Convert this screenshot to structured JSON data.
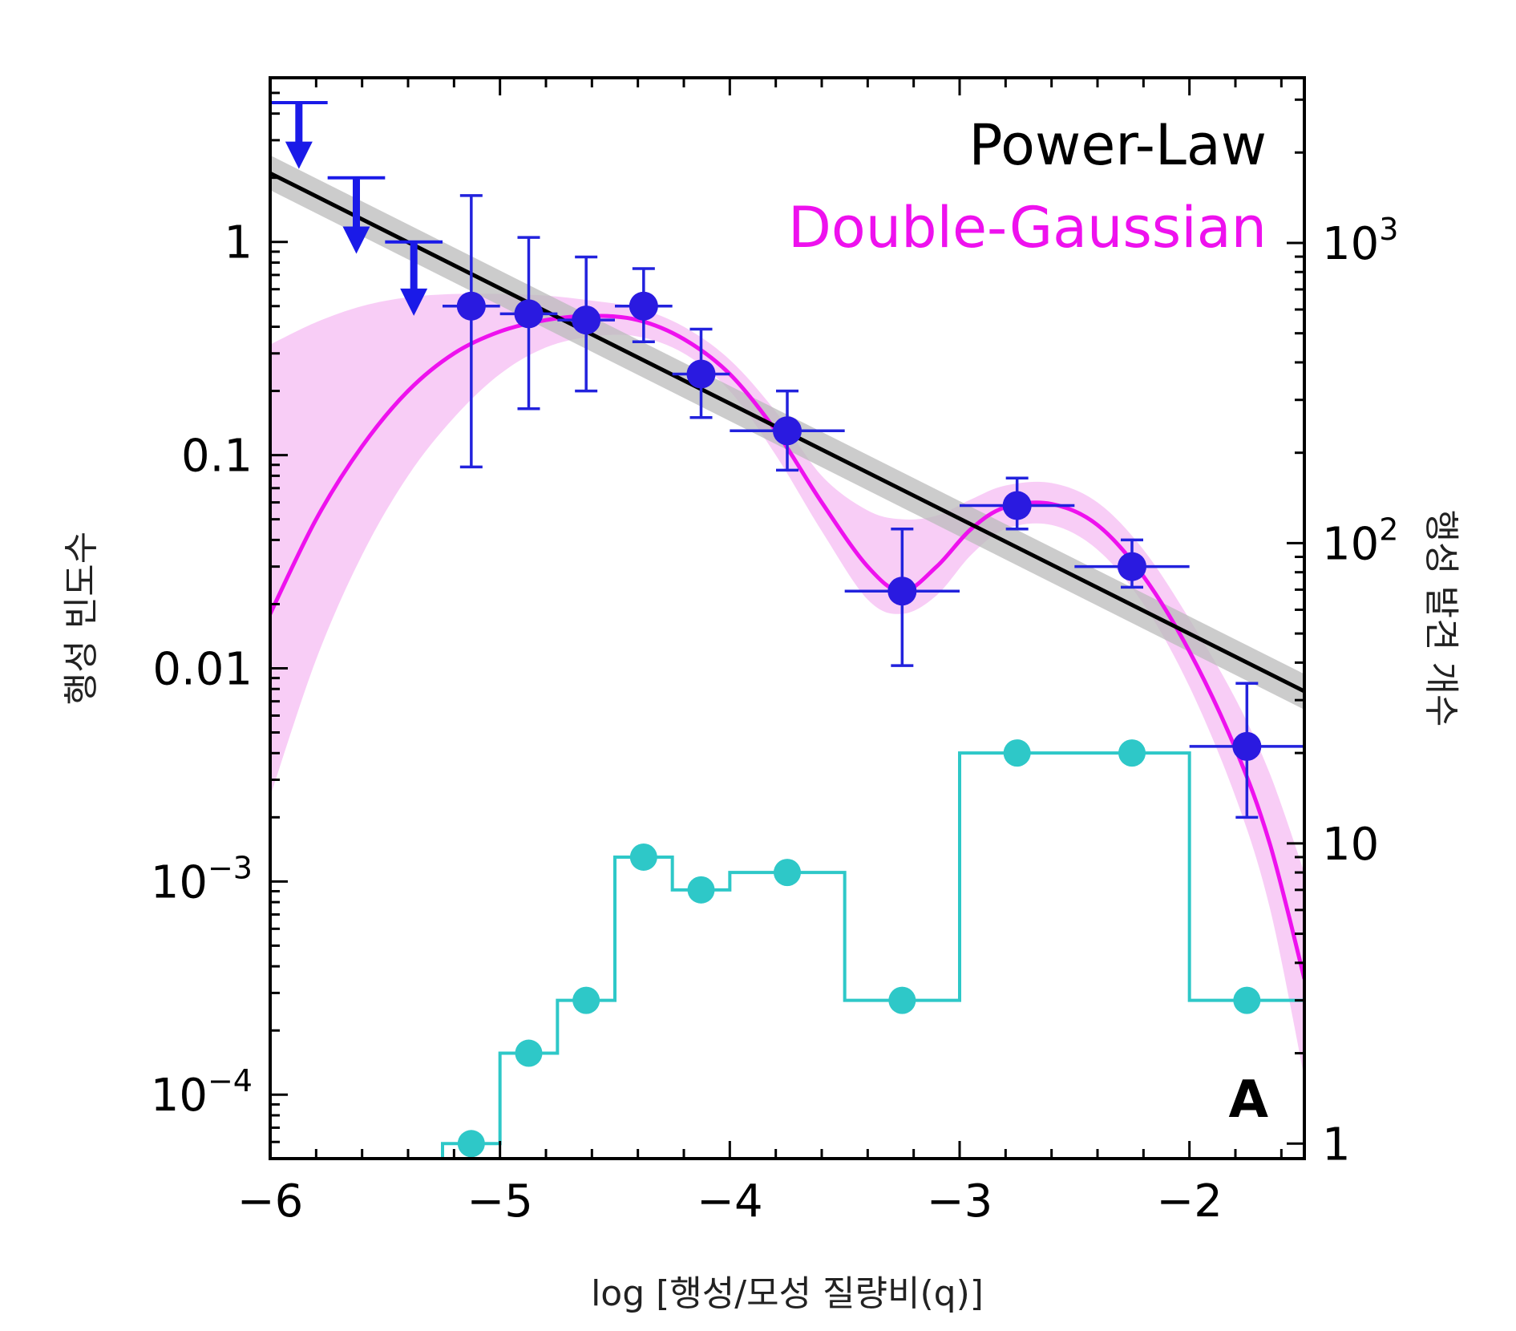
{
  "chart_data": {
    "type": "scatter",
    "title": "",
    "panel_label": "A",
    "xlabel": "log [행성/모성  질량비(q)]",
    "ylabel_left": "행성 빈도수",
    "ylabel_right": "행성 발견 개수",
    "xlim": [
      -6,
      -1.5
    ],
    "ylim_left_log10": [
      -4.3,
      0.77
    ],
    "ylim_right_log10": [
      -0.05,
      3.55
    ],
    "x_ticks": [
      {
        "value": -6,
        "label": "−6"
      },
      {
        "value": -5,
        "label": "−5"
      },
      {
        "value": -4,
        "label": "−4"
      },
      {
        "value": -3,
        "label": "−3"
      },
      {
        "value": -2,
        "label": "−2"
      }
    ],
    "y_ticks_left": [
      {
        "value": 1,
        "label": "1"
      },
      {
        "value": 0.1,
        "label": "0.1"
      },
      {
        "value": 0.01,
        "label": "0.01"
      },
      {
        "value": 0.001,
        "label": "10",
        "exp": "−3"
      },
      {
        "value": 0.0001,
        "label": "10",
        "exp": "−4"
      }
    ],
    "y_ticks_right": [
      {
        "value": 1000,
        "label": "10",
        "exp": "3"
      },
      {
        "value": 100,
        "label": "10",
        "exp": "2"
      },
      {
        "value": 10,
        "label": "10"
      },
      {
        "value": 1,
        "label": "1"
      }
    ],
    "legend": [
      {
        "label": "Power-Law",
        "color": "#000000"
      },
      {
        "label": "Double-Gaussian",
        "color": "#ee11ee"
      }
    ],
    "series": [
      {
        "name": "Power-Law",
        "type": "line",
        "color": "#000000",
        "band_color": "#bbbbbb",
        "points": [
          {
            "x": -6,
            "y": 2.1
          },
          {
            "x": -1.5,
            "y": 0.0078
          }
        ],
        "band_upper": [
          {
            "x": -6,
            "y": 2.55
          },
          {
            "x": -1.5,
            "y": 0.0094
          }
        ],
        "band_lower": [
          {
            "x": -6,
            "y": 1.75
          },
          {
            "x": -1.5,
            "y": 0.0064
          }
        ]
      },
      {
        "name": "Double-Gaussian",
        "type": "line",
        "color": "#ee11ee",
        "band_color": "#f7c4f4",
        "points": [
          {
            "x": -6.0,
            "y": 0.018
          },
          {
            "x": -5.8,
            "y": 0.05
          },
          {
            "x": -5.6,
            "y": 0.11
          },
          {
            "x": -5.4,
            "y": 0.2
          },
          {
            "x": -5.2,
            "y": 0.3
          },
          {
            "x": -5.0,
            "y": 0.38
          },
          {
            "x": -4.8,
            "y": 0.43
          },
          {
            "x": -4.6,
            "y": 0.45
          },
          {
            "x": -4.4,
            "y": 0.43
          },
          {
            "x": -4.2,
            "y": 0.35
          },
          {
            "x": -4.0,
            "y": 0.24
          },
          {
            "x": -3.8,
            "y": 0.13
          },
          {
            "x": -3.6,
            "y": 0.06
          },
          {
            "x": -3.4,
            "y": 0.03
          },
          {
            "x": -3.25,
            "y": 0.023
          },
          {
            "x": -3.1,
            "y": 0.03
          },
          {
            "x": -2.95,
            "y": 0.045
          },
          {
            "x": -2.8,
            "y": 0.057
          },
          {
            "x": -2.6,
            "y": 0.059
          },
          {
            "x": -2.4,
            "y": 0.047
          },
          {
            "x": -2.2,
            "y": 0.027
          },
          {
            "x": -2.0,
            "y": 0.012
          },
          {
            "x": -1.8,
            "y": 0.0042
          },
          {
            "x": -1.65,
            "y": 0.0015
          },
          {
            "x": -1.5,
            "y": 0.00035
          }
        ],
        "band_upper": [
          {
            "x": -6.0,
            "y": 0.33
          },
          {
            "x": -5.8,
            "y": 0.42
          },
          {
            "x": -5.6,
            "y": 0.5
          },
          {
            "x": -5.4,
            "y": 0.55
          },
          {
            "x": -5.2,
            "y": 0.57
          },
          {
            "x": -5.0,
            "y": 0.57
          },
          {
            "x": -4.8,
            "y": 0.56
          },
          {
            "x": -4.6,
            "y": 0.53
          },
          {
            "x": -4.4,
            "y": 0.49
          },
          {
            "x": -4.2,
            "y": 0.4
          },
          {
            "x": -4.0,
            "y": 0.28
          },
          {
            "x": -3.8,
            "y": 0.16
          },
          {
            "x": -3.6,
            "y": 0.08
          },
          {
            "x": -3.4,
            "y": 0.055
          },
          {
            "x": -3.25,
            "y": 0.05
          },
          {
            "x": -3.1,
            "y": 0.052
          },
          {
            "x": -2.95,
            "y": 0.062
          },
          {
            "x": -2.8,
            "y": 0.072
          },
          {
            "x": -2.6,
            "y": 0.074
          },
          {
            "x": -2.4,
            "y": 0.06
          },
          {
            "x": -2.2,
            "y": 0.036
          },
          {
            "x": -2.0,
            "y": 0.017
          },
          {
            "x": -1.8,
            "y": 0.0072
          },
          {
            "x": -1.65,
            "y": 0.0032
          },
          {
            "x": -1.5,
            "y": 0.0011
          }
        ],
        "band_lower": [
          {
            "x": -6.0,
            "y": 0.0025
          },
          {
            "x": -5.8,
            "y": 0.011
          },
          {
            "x": -5.6,
            "y": 0.034
          },
          {
            "x": -5.4,
            "y": 0.08
          },
          {
            "x": -5.2,
            "y": 0.15
          },
          {
            "x": -5.0,
            "y": 0.24
          },
          {
            "x": -4.8,
            "y": 0.32
          },
          {
            "x": -4.6,
            "y": 0.36
          },
          {
            "x": -4.4,
            "y": 0.36
          },
          {
            "x": -4.2,
            "y": 0.3
          },
          {
            "x": -4.0,
            "y": 0.2
          },
          {
            "x": -3.8,
            "y": 0.1
          },
          {
            "x": -3.6,
            "y": 0.044
          },
          {
            "x": -3.4,
            "y": 0.021
          },
          {
            "x": -3.25,
            "y": 0.018
          },
          {
            "x": -3.1,
            "y": 0.022
          },
          {
            "x": -2.95,
            "y": 0.034
          },
          {
            "x": -2.8,
            "y": 0.045
          },
          {
            "x": -2.6,
            "y": 0.047
          },
          {
            "x": -2.4,
            "y": 0.036
          },
          {
            "x": -2.2,
            "y": 0.02
          },
          {
            "x": -2.0,
            "y": 0.0082
          },
          {
            "x": -1.8,
            "y": 0.0025
          },
          {
            "x": -1.65,
            "y": 0.00075
          },
          {
            "x": -1.5,
            "y": 0.00012
          }
        ]
      },
      {
        "name": "Planet frequency",
        "type": "errorbar",
        "color": "#2222dd",
        "marker_color": "#2a1ae0",
        "points": [
          {
            "x": -5.125,
            "y": 0.5,
            "xerr": 0.125,
            "ylo": 0.088,
            "yhi": 1.65
          },
          {
            "x": -4.875,
            "y": 0.46,
            "xerr": 0.125,
            "ylo": 0.165,
            "yhi": 1.05
          },
          {
            "x": -4.625,
            "y": 0.43,
            "xerr": 0.125,
            "ylo": 0.2,
            "yhi": 0.85
          },
          {
            "x": -4.375,
            "y": 0.5,
            "xerr": 0.125,
            "ylo": 0.34,
            "yhi": 0.75
          },
          {
            "x": -4.125,
            "y": 0.24,
            "xerr": 0.125,
            "ylo": 0.15,
            "yhi": 0.39
          },
          {
            "x": -3.75,
            "y": 0.13,
            "xerr": 0.25,
            "ylo": 0.085,
            "yhi": 0.2
          },
          {
            "x": -3.25,
            "y": 0.023,
            "xerr": 0.25,
            "ylo": 0.0103,
            "yhi": 0.045
          },
          {
            "x": -2.75,
            "y": 0.058,
            "xerr": 0.25,
            "ylo": 0.045,
            "yhi": 0.078
          },
          {
            "x": -2.25,
            "y": 0.03,
            "xerr": 0.25,
            "ylo": 0.024,
            "yhi": 0.04
          },
          {
            "x": -1.75,
            "y": 0.0043,
            "xerr": 0.25,
            "ylo": 0.002,
            "yhi": 0.0085
          }
        ]
      },
      {
        "name": "Upper limits",
        "type": "upper_limit",
        "color": "#1a1ae8",
        "points": [
          {
            "x": -5.875,
            "y": 4.5,
            "xerr": 0.125,
            "arrow_to": 2.2
          },
          {
            "x": -5.625,
            "y": 2.0,
            "xerr": 0.125,
            "arrow_to": 0.88
          },
          {
            "x": -5.375,
            "y": 1.0,
            "xerr": 0.125,
            "arrow_to": 0.45
          }
        ]
      },
      {
        "name": "Number of discovered planets",
        "type": "step",
        "axis": "right",
        "color": "#2ec8c8",
        "bins": [
          {
            "x0": -5.25,
            "x1": -5.0,
            "x": -5.125,
            "count": 1
          },
          {
            "x0": -5.0,
            "x1": -4.75,
            "x": -4.875,
            "count": 2
          },
          {
            "x0": -4.75,
            "x1": -4.5,
            "x": -4.625,
            "count": 3
          },
          {
            "x0": -4.5,
            "x1": -4.25,
            "x": -4.375,
            "count": 9
          },
          {
            "x0": -4.25,
            "x1": -4.0,
            "x": -4.125,
            "count": 7
          },
          {
            "x0": -4.0,
            "x1": -3.5,
            "x": -3.75,
            "count": 8
          },
          {
            "x0": -3.5,
            "x1": -3.0,
            "x": -3.25,
            "count": 3
          },
          {
            "x0": -3.0,
            "x1": -2.5,
            "x": -2.75,
            "count": 20
          },
          {
            "x0": -2.5,
            "x1": -2.0,
            "x": -2.25,
            "count": 20
          },
          {
            "x0": -2.0,
            "x1": -1.5,
            "x": -1.75,
            "count": 3
          }
        ]
      }
    ]
  }
}
